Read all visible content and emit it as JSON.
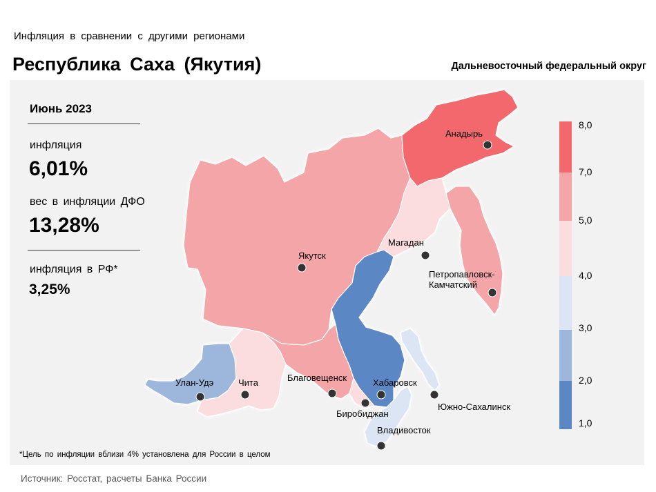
{
  "header": {
    "subtitle": "Инфляция в сравнении с другими регионами",
    "title": "Республика Саха (Якутия)",
    "district": "Дальневосточный федеральный округ"
  },
  "panel": {
    "month": "Июнь 2023",
    "inflation_label": "инфляция",
    "inflation_value": "6,01%",
    "weight_label": "вес в инфляции ДФО",
    "weight_value": "13,28%",
    "rf_label": "инфляция в РФ*",
    "rf_value": "3,25%"
  },
  "map": {
    "regions": [
      {
        "name": "Республика Саха (Якутия)",
        "city": "Якутск",
        "color": "#f4a5a8"
      },
      {
        "name": "Чукотский АО",
        "city": "Анадырь",
        "color": "#f2686c"
      },
      {
        "name": "Магаданская область",
        "city": "Магадан",
        "color": "#fbdde0"
      },
      {
        "name": "Камчатский край",
        "city": "Петропавловск-Камчатский",
        "color": "#f4a5a8"
      },
      {
        "name": "Хабаровский край",
        "city": "Хабаровск",
        "color": "#5b87c5"
      },
      {
        "name": "Сахалинская область",
        "city": "Южно-Сахалинск",
        "color": "#dbe5f4"
      },
      {
        "name": "Приморский край",
        "city": "Владивосток",
        "color": "#dbe5f4"
      },
      {
        "name": "Еврейская АО",
        "city": "Биробиджан",
        "color": "#fbdde0"
      },
      {
        "name": "Амурская область",
        "city": "Благовещенск",
        "color": "#f4a5a8"
      },
      {
        "name": "Забайкальский край",
        "city": "Чита",
        "color": "#fbdde0"
      },
      {
        "name": "Республика Бурятия",
        "city": "Улан-Удэ",
        "color": "#9db7dc"
      }
    ],
    "city_labels": {
      "anadyr": "Анадырь",
      "yakutsk": "Якутск",
      "magadan": "Магадан",
      "petro1": "Петропавловск-",
      "petro2": "Камчатский",
      "khabarovsk": "Хабаровск",
      "sakhalinsk": "Южно-Сахалинск",
      "vladivostok": "Владивосток",
      "birobidzhan": "Биробиджан",
      "blagoveshchensk": "Благовещенск",
      "chita": "Чита",
      "ulanude": "Улан-Удэ"
    }
  },
  "legend": {
    "bins": [
      {
        "from": 7.0,
        "to": 8.0,
        "color": "#f2686c"
      },
      {
        "from": 5.0,
        "to": 7.0,
        "color": "#f4a5a8"
      },
      {
        "from": 4.0,
        "to": 5.0,
        "color": "#fbdde0"
      },
      {
        "from": 3.0,
        "to": 4.0,
        "color": "#dbe5f4"
      },
      {
        "from": 2.0,
        "to": 3.0,
        "color": "#9db7dc"
      },
      {
        "from": 1.0,
        "to": 2.0,
        "color": "#5b87c5"
      }
    ],
    "ticks": [
      "8,0",
      "7,0",
      "5,0",
      "4,0",
      "3,0",
      "2,0",
      "1,0"
    ]
  },
  "footnote": "*Цель по инфляции вблизи 4% установлена для России в целом",
  "source": "Источник: Росстат, расчеты Банка России"
}
